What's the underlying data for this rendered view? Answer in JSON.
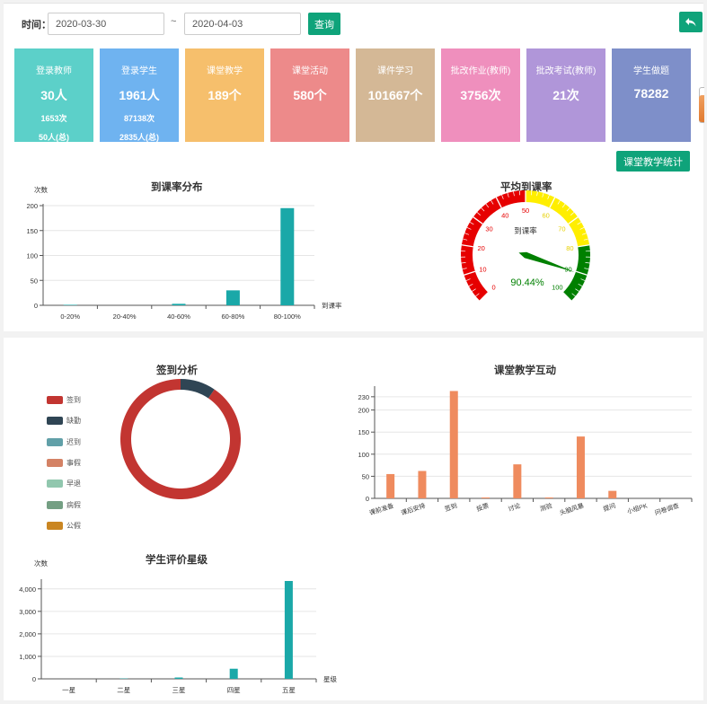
{
  "toolbar": {
    "time_label": "时间：",
    "start_date": "2020-03-30",
    "tilde": "~",
    "end_date": "2020-04-03",
    "query_label": "查询",
    "back_icon": "undo-arrow-icon",
    "teach_stat_label": "课堂教学统计"
  },
  "cards": [
    {
      "title": "登录教师",
      "main": "30人",
      "sub": "1653次",
      "sub2": "50人(总)",
      "color": "#5cd0c9"
    },
    {
      "title": "登录学生",
      "main": "1961人",
      "sub": "87138次",
      "sub2": "2835人(总)",
      "color": "#6fb3f0"
    },
    {
      "title": "课堂教学",
      "main": "189个",
      "sub": "",
      "sub2": "",
      "color": "#f6bf6c"
    },
    {
      "title": "课堂活动",
      "main": "580个",
      "sub": "",
      "sub2": "",
      "color": "#ed8a8a"
    },
    {
      "title": "课件学习",
      "main": "101667个",
      "sub": "",
      "sub2": "",
      "color": "#d4b896"
    },
    {
      "title": "批改作业(教师)",
      "main": "3756次",
      "sub": "",
      "sub2": "",
      "color": "#ef8fbd"
    },
    {
      "title": "批改考试(教师)",
      "main": "21次",
      "sub": "",
      "sub2": "",
      "color": "#b096d9"
    },
    {
      "title": "学生做题",
      "main": "78282",
      "sub": "",
      "sub2": "",
      "color": "#7e8fc9"
    }
  ],
  "attendance_dist": {
    "chart_data": {
      "type": "bar",
      "title": "到课率分布",
      "ylabel": "次数",
      "xlabel": "到课率",
      "categories": [
        "0-20%",
        "20-40%",
        "40-60%",
        "60-80%",
        "80-100%"
      ],
      "values": [
        1,
        0,
        3,
        30,
        195
      ],
      "ylim": [
        0,
        200
      ],
      "yticks": [
        0,
        50,
        100,
        150,
        200
      ],
      "color": "#1aa8a8"
    }
  },
  "gauge": {
    "chart_data": {
      "type": "gauge",
      "title": "平均到课率",
      "name": "到课率",
      "value": 90.44,
      "value_text": "90.44%",
      "min": 0,
      "max": 100,
      "tick_labels": [
        "0",
        "10",
        "20",
        "30",
        "40",
        "50",
        "60",
        "70",
        "80",
        "90",
        "100"
      ],
      "bands": [
        {
          "to": 50,
          "color": "#e60000"
        },
        {
          "to": 80,
          "color": "#ffee00"
        },
        {
          "to": 100,
          "color": "#008000"
        }
      ]
    }
  },
  "signin": {
    "chart_data": {
      "type": "pie",
      "title": "签到分析",
      "legend_position": "left",
      "slices": [
        {
          "name": "签到",
          "value": 90.5,
          "color": "#c23531"
        },
        {
          "name": "缺勤",
          "value": 9.5,
          "color": "#2f4554"
        },
        {
          "name": "迟到",
          "value": 0,
          "color": "#61a0a8"
        },
        {
          "name": "事假",
          "value": 0,
          "color": "#d48265"
        },
        {
          "name": "早退",
          "value": 0,
          "color": "#91c7ae"
        },
        {
          "name": "病假",
          "value": 0,
          "color": "#749f83"
        },
        {
          "name": "公假",
          "value": 0,
          "color": "#ca8622"
        }
      ]
    }
  },
  "interaction": {
    "chart_data": {
      "type": "bar",
      "title": "课堂教学互动",
      "categories": [
        "课前准备",
        "课后安排",
        "签到",
        "投票",
        "讨论",
        "测验",
        "头脑风暴",
        "提问",
        "小组PK",
        "问卷调查"
      ],
      "values": [
        55,
        62,
        243,
        2,
        77,
        2,
        140,
        17,
        0,
        0
      ],
      "ylim": [
        0,
        250
      ],
      "yticks": [
        0,
        50,
        100,
        150,
        200,
        230
      ],
      "color": "#ef8b5e"
    }
  },
  "rating": {
    "chart_data": {
      "type": "bar",
      "title": "学生评价星级",
      "ylabel": "次数",
      "xlabel": "星级",
      "categories": [
        "一星",
        "二星",
        "三星",
        "四星",
        "五星"
      ],
      "values": [
        0,
        15,
        60,
        450,
        4350
      ],
      "ylim": [
        0,
        4350
      ],
      "yticks": [
        "0",
        "1,000",
        "2,000",
        "3,000",
        "4,000"
      ],
      "ytick_values": [
        0,
        1000,
        2000,
        3000,
        4000
      ],
      "color": "#1aa8a8"
    }
  }
}
